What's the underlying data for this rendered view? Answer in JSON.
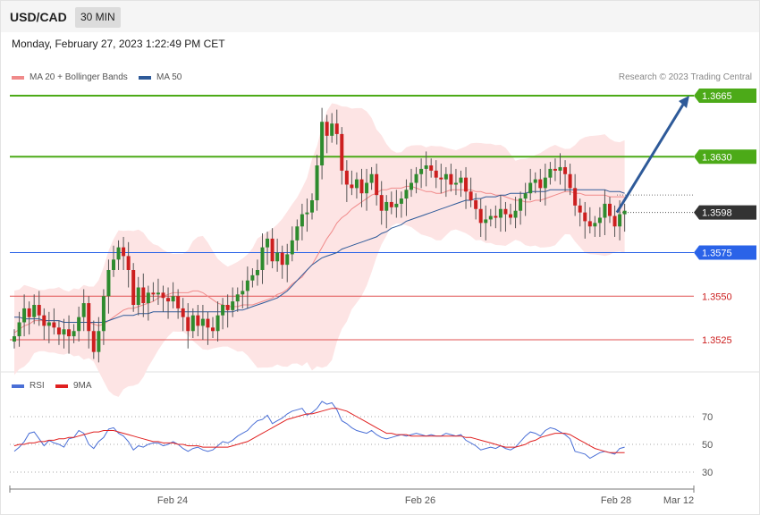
{
  "header": {
    "symbol": "USD/CAD",
    "timeframe": "30 MIN",
    "datetime": "Monday, February 27, 2023 1:22:49 PM CET",
    "copyright": "Research © 2023 Trading Central"
  },
  "legend": {
    "ma20": "MA 20 + Bollinger Bands",
    "ma50": "MA 50",
    "ma20_color": "#f08a8a",
    "ma50_color": "#2e5a99"
  },
  "rsi_legend": {
    "rsi": "RSI",
    "ma9": "9MA",
    "rsi_color": "#4a6fd6",
    "ma9_color": "#e02020"
  },
  "chart_data": [
    {
      "type": "candlestick",
      "ylim": [
        1.3497,
        1.3688
      ],
      "levels": [
        {
          "label": "1.3665",
          "value": 1.3665,
          "kind": "target",
          "color": "#4caa18"
        },
        {
          "label": "1.3630",
          "value": 1.363,
          "kind": "target",
          "color": "#4caa18"
        },
        {
          "label": "1.3598",
          "value": 1.3598,
          "kind": "current",
          "color": "#333333"
        },
        {
          "label": "1.3575",
          "value": 1.3575,
          "kind": "pivot",
          "color": "#2a63e8"
        },
        {
          "label": "1.3550",
          "value": 1.355,
          "kind": "support",
          "color": "#e05050"
        },
        {
          "label": "1.3525",
          "value": 1.3525,
          "kind": "support",
          "color": "#e05050"
        }
      ],
      "x_ticks": [
        "Feb 24",
        "Feb 26",
        "Feb 28",
        "Mar 12"
      ],
      "arrow": {
        "from": 1.3598,
        "to": 1.3665,
        "color": "#2e5a99"
      },
      "closes": [
        1.3527,
        1.3535,
        1.3543,
        1.3538,
        1.3545,
        1.3539,
        1.3533,
        1.3535,
        1.3532,
        1.3528,
        1.3531,
        1.3527,
        1.353,
        1.3538,
        1.3546,
        1.353,
        1.3518,
        1.353,
        1.355,
        1.3565,
        1.3571,
        1.3578,
        1.3573,
        1.3565,
        1.3545,
        1.3555,
        1.3546,
        1.3552,
        1.3551,
        1.3552,
        1.3549,
        1.3547,
        1.355,
        1.3543,
        1.3538,
        1.353,
        1.3539,
        1.3533,
        1.3537,
        1.3532,
        1.353,
        1.3539,
        1.3545,
        1.3542,
        1.3547,
        1.3551,
        1.3553,
        1.3559,
        1.3562,
        1.3565,
        1.3578,
        1.3583,
        1.357,
        1.3575,
        1.3568,
        1.3574,
        1.3582,
        1.359,
        1.3597,
        1.3598,
        1.3605,
        1.3625,
        1.365,
        1.3642,
        1.3649,
        1.3643,
        1.3622,
        1.3614,
        1.3612,
        1.3617,
        1.3609,
        1.3615,
        1.362,
        1.3608,
        1.3599,
        1.3604,
        1.3601,
        1.3603,
        1.3606,
        1.3611,
        1.3615,
        1.362,
        1.3623,
        1.3625,
        1.3622,
        1.3618,
        1.3617,
        1.362,
        1.3614,
        1.3615,
        1.3618,
        1.361,
        1.3605,
        1.36,
        1.3592,
        1.3594,
        1.3596,
        1.3595,
        1.36,
        1.3597,
        1.3595,
        1.3599,
        1.3606,
        1.3609,
        1.3615,
        1.3617,
        1.3612,
        1.3618,
        1.3623,
        1.3622,
        1.3624,
        1.362,
        1.3612,
        1.3602,
        1.3598,
        1.3593,
        1.359,
        1.3592,
        1.3595,
        1.3603,
        1.3596,
        1.359,
        1.3597,
        1.3599
      ],
      "ma20": [
        1.3529,
        1.3531,
        1.3533,
        1.3534,
        1.3536,
        1.3536,
        1.3536,
        1.3536,
        1.3536,
        1.3536,
        1.3535,
        1.3535,
        1.3535,
        1.3535,
        1.3535,
        1.3535,
        1.3534,
        1.3533,
        1.3534,
        1.3536,
        1.3538,
        1.354,
        1.3542,
        1.3543,
        1.3543,
        1.3544,
        1.3545,
        1.3546,
        1.3547,
        1.3549,
        1.355,
        1.3551,
        1.3552,
        1.3552,
        1.3552,
        1.3552,
        1.3553,
        1.3553,
        1.3552,
        1.355,
        1.3548,
        1.3546,
        1.3545,
        1.3544,
        1.3544,
        1.3544,
        1.3545,
        1.3545,
        1.3545,
        1.3546,
        1.3547,
        1.3548,
        1.3549,
        1.3551,
        1.3552,
        1.3554,
        1.3557,
        1.3559,
        1.3561,
        1.3565,
        1.3568,
        1.3573,
        1.3578,
        1.3583,
        1.3587,
        1.3592,
        1.3595,
        1.3597,
        1.36,
        1.3602,
        1.3604,
        1.3606,
        1.3608,
        1.3609,
        1.3611,
        1.3611,
        1.3612,
        1.3612,
        1.3612,
        1.3613,
        1.3613,
        1.3612,
        1.3611,
        1.361,
        1.361,
        1.3609,
        1.3609,
        1.361,
        1.3611,
        1.3611,
        1.3611,
        1.3611,
        1.3611,
        1.361,
        1.361,
        1.3609,
        1.3609,
        1.3608,
        1.3608,
        1.3607,
        1.3606,
        1.3605,
        1.3605,
        1.3604,
        1.3604,
        1.3605,
        1.3605,
        1.3606,
        1.3607,
        1.3608,
        1.3609,
        1.361,
        1.361,
        1.3609,
        1.3609,
        1.3608,
        1.3608,
        1.3608,
        1.3608,
        1.3608,
        1.3607,
        1.3607,
        1.3607,
        1.3607
      ],
      "ma50": [
        1.3538,
        1.3538,
        1.3537,
        1.3537,
        1.3537,
        1.3537,
        1.3536,
        1.3536,
        1.3536,
        1.3536,
        1.3535,
        1.3535,
        1.3535,
        1.3535,
        1.3535,
        1.3535,
        1.3535,
        1.3535,
        1.3535,
        1.3536,
        1.3537,
        1.3538,
        1.3539,
        1.3539,
        1.3539,
        1.354,
        1.354,
        1.354,
        1.3541,
        1.3541,
        1.3541,
        1.3541,
        1.3541,
        1.3541,
        1.3541,
        1.3541,
        1.3541,
        1.3541,
        1.3541,
        1.3541,
        1.3541,
        1.3541,
        1.3541,
        1.3541,
        1.3541,
        1.3542,
        1.3542,
        1.3543,
        1.3544,
        1.3545,
        1.3546,
        1.3547,
        1.3548,
        1.3549,
        1.3551,
        1.3553,
        1.3556,
        1.3559,
        1.3562,
        1.3565,
        1.3568,
        1.357,
        1.3572,
        1.3573,
        1.3574,
        1.3575,
        1.3577,
        1.3578,
        1.3579,
        1.358,
        1.3581,
        1.3582,
        1.3583,
        1.3584,
        1.3586,
        1.3587,
        1.3589,
        1.359,
        1.3591,
        1.3593,
        1.3594,
        1.3595,
        1.3596,
        1.3597,
        1.3598,
        1.3599,
        1.36,
        1.3601,
        1.3602,
        1.3603,
        1.3604,
        1.3605,
        1.3605,
        1.3606,
        1.3606,
        1.3607,
        1.3607,
        1.3607,
        1.3608,
        1.3608,
        1.3609,
        1.3609,
        1.3609,
        1.3609,
        1.361,
        1.361,
        1.361,
        1.361,
        1.3611,
        1.3611,
        1.3611,
        1.3611,
        1.3611,
        1.3611,
        1.3611,
        1.3611,
        1.3611,
        1.3611,
        1.3611,
        1.3611,
        1.361,
        1.361,
        1.361,
        1.3609
      ]
    },
    {
      "type": "line",
      "ylim": [
        20,
        85
      ],
      "y_ticks": [
        "70",
        "50",
        "30"
      ],
      "y_tick_values": [
        70,
        50,
        30
      ],
      "series": [
        {
          "name": "RSI",
          "values": [
            45,
            48,
            52,
            58,
            59,
            54,
            49,
            53,
            51,
            50,
            48,
            54,
            55,
            60,
            58,
            50,
            47,
            52,
            55,
            61,
            62,
            58,
            56,
            52,
            46,
            49,
            48,
            50,
            51,
            51,
            49,
            50,
            52,
            50,
            47,
            45,
            47,
            48,
            46,
            45,
            46,
            49,
            52,
            51,
            53,
            56,
            58,
            60,
            64,
            67,
            68,
            71,
            65,
            67,
            69,
            72,
            74,
            75,
            76,
            71,
            73,
            76,
            81,
            79,
            80,
            75,
            67,
            65,
            62,
            60,
            59,
            58,
            60,
            57,
            55,
            54,
            55,
            56,
            57,
            56,
            57,
            58,
            57,
            56,
            57,
            56,
            56,
            58,
            57,
            56,
            57,
            53,
            51,
            49,
            46,
            47,
            48,
            47,
            49,
            47,
            46,
            48,
            52,
            56,
            59,
            58,
            56,
            60,
            62,
            61,
            59,
            57,
            54,
            45,
            44,
            43,
            40,
            42,
            44,
            45,
            44,
            43,
            47,
            48
          ]
        },
        {
          "name": "9MA",
          "values": [
            49,
            50,
            50,
            51,
            51,
            52,
            52,
            53,
            53,
            54,
            54,
            55,
            55,
            56,
            57,
            58,
            59,
            59,
            60,
            60,
            60,
            59,
            58,
            57,
            56,
            55,
            54,
            53,
            52,
            52,
            51,
            51,
            51,
            50,
            50,
            49,
            49,
            49,
            48,
            48,
            48,
            48,
            48,
            48,
            49,
            50,
            51,
            52,
            54,
            56,
            58,
            60,
            62,
            64,
            66,
            68,
            69,
            70,
            71,
            72,
            72,
            73,
            74,
            75,
            76,
            76,
            75,
            74,
            72,
            70,
            68,
            66,
            64,
            62,
            60,
            58,
            58,
            57,
            57,
            57,
            56,
            56,
            56,
            56,
            56,
            56,
            56,
            56,
            56,
            56,
            56,
            55,
            55,
            54,
            53,
            52,
            51,
            50,
            49,
            48,
            48,
            48,
            49,
            50,
            52,
            53,
            55,
            56,
            57,
            58,
            58,
            58,
            57,
            55,
            53,
            51,
            49,
            47,
            46,
            45,
            44,
            44,
            44,
            44
          ]
        }
      ]
    }
  ]
}
